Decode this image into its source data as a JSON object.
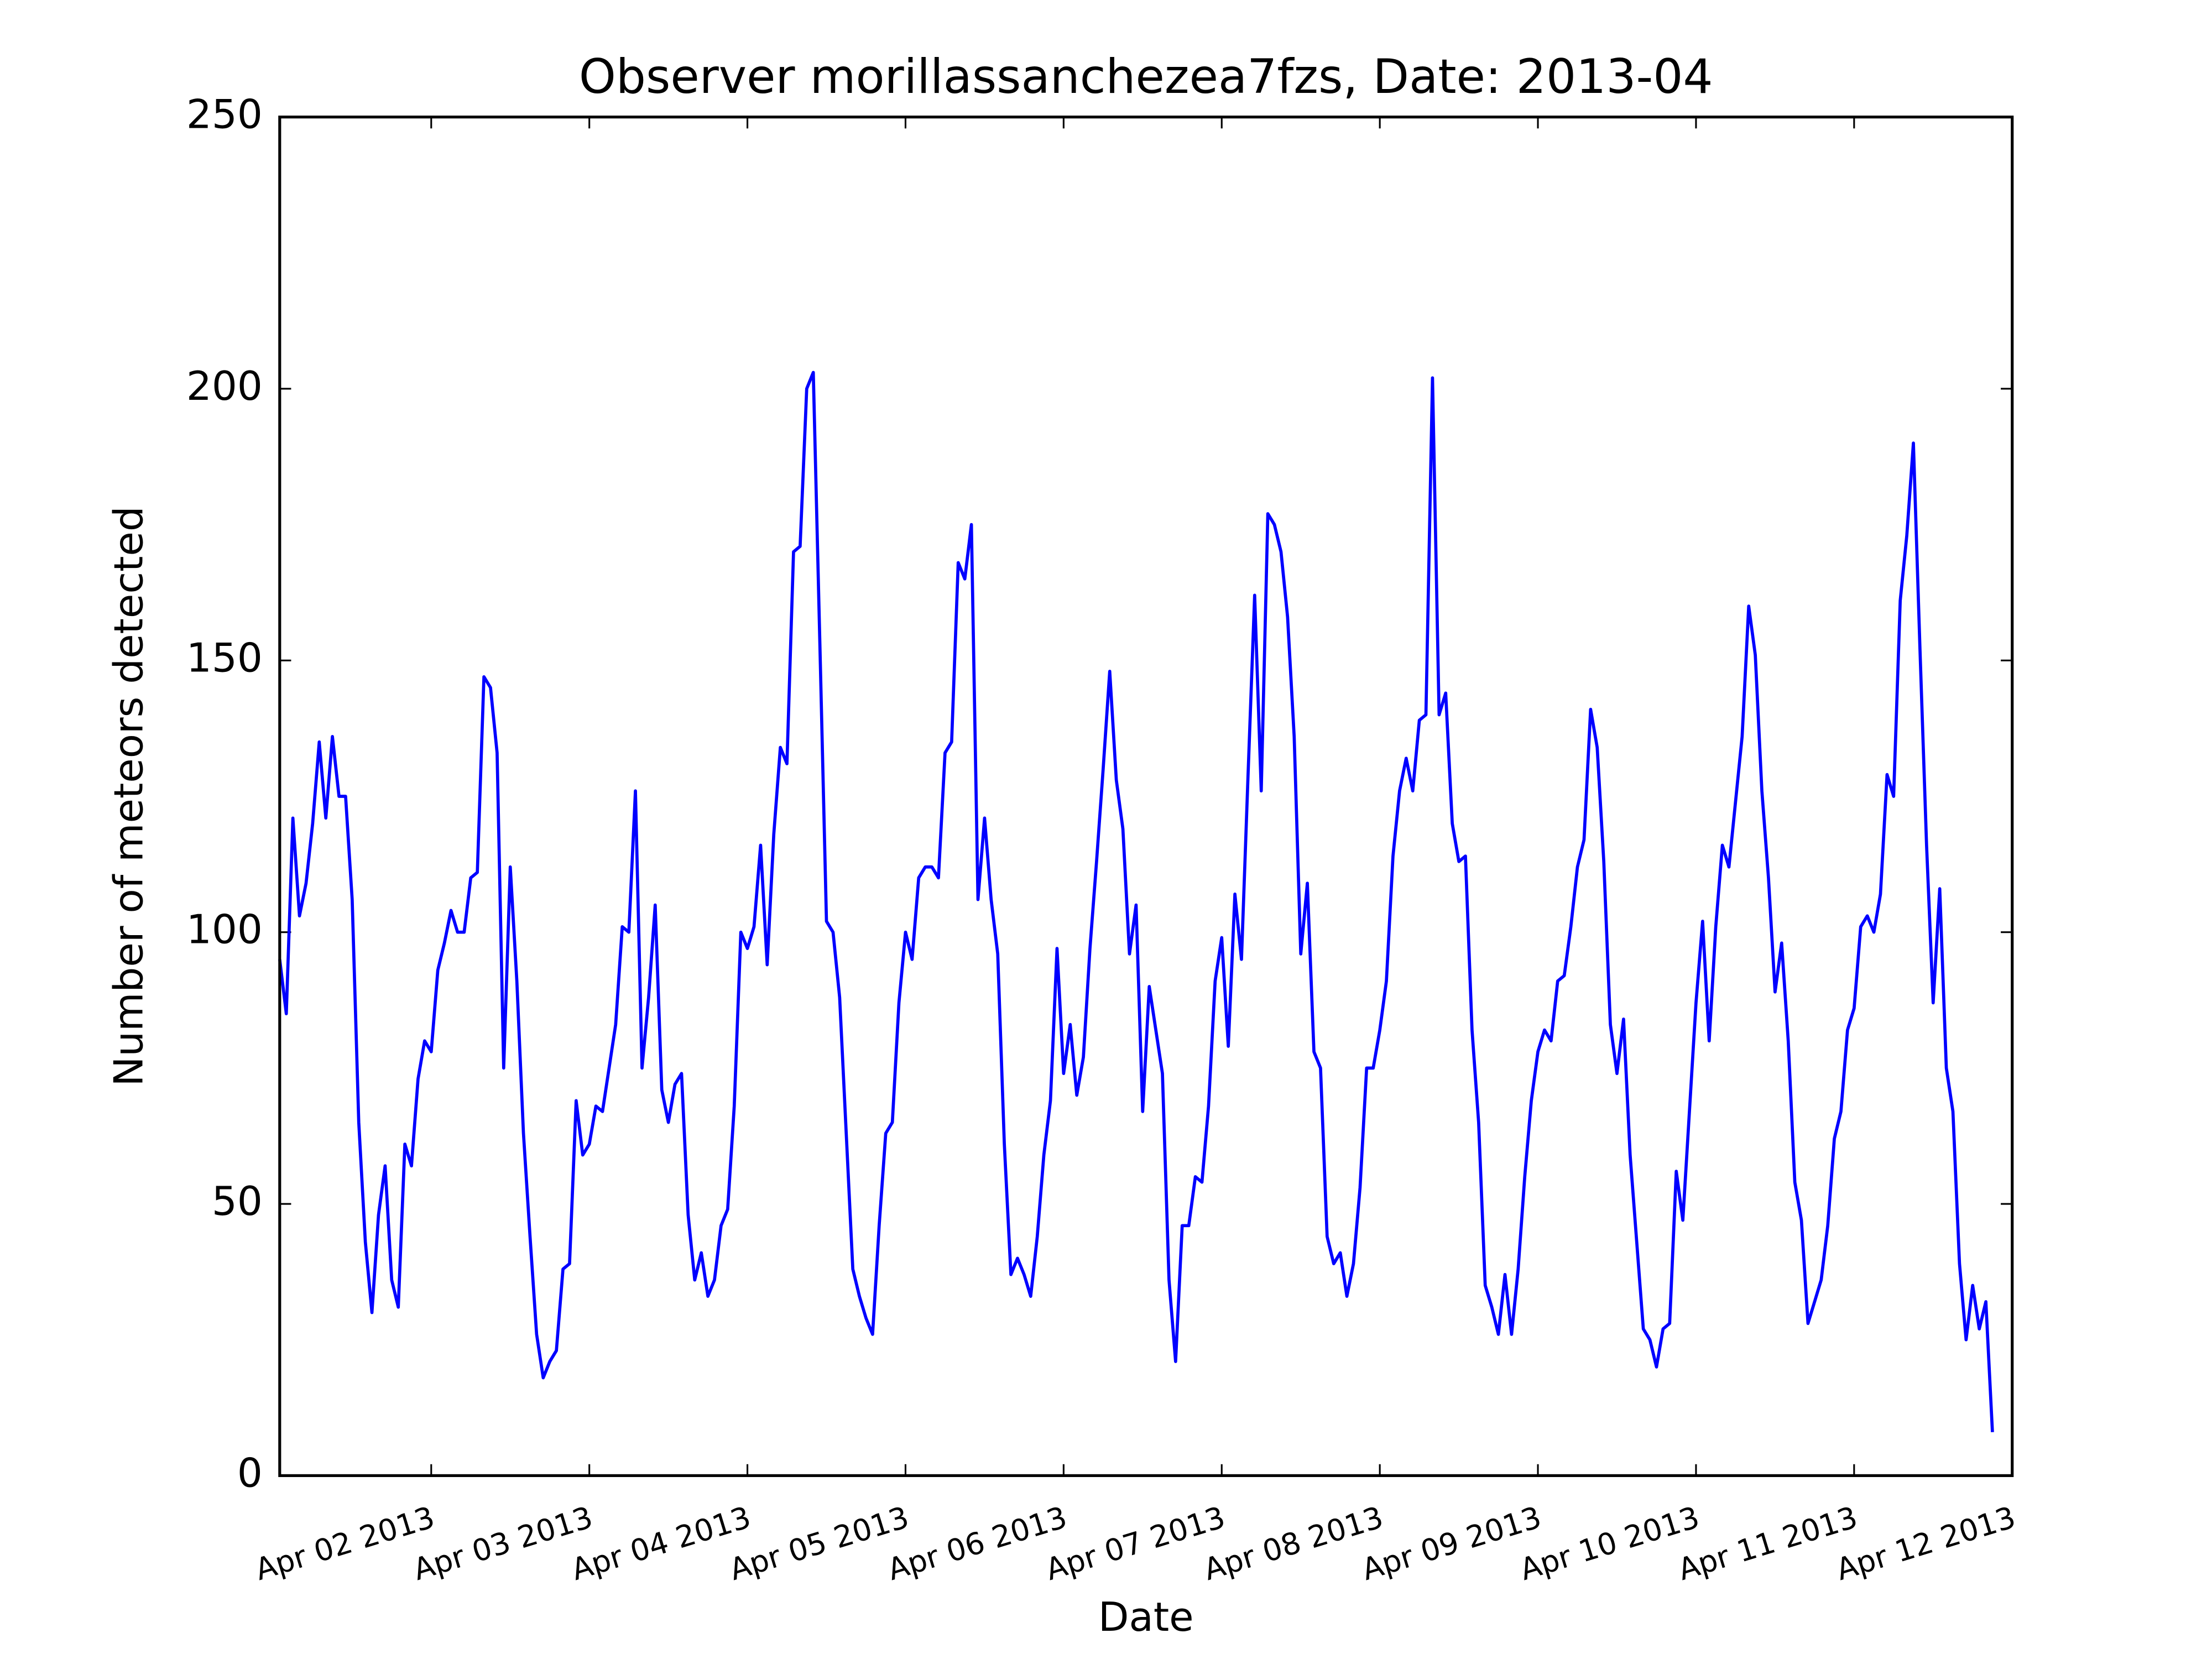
{
  "chart_data": {
    "type": "line",
    "title": "Observer morillassanchezea7fzs, Date: 2013-04",
    "x_label": "Date",
    "y_label": "Number of meteors detected",
    "color": "#0000ff",
    "x": [
      "2013-04-01T01:00",
      "2013-04-01T02:00",
      "2013-04-01T03:00",
      "2013-04-01T04:00",
      "2013-04-01T05:00",
      "2013-04-01T06:00",
      "2013-04-01T07:00",
      "2013-04-01T08:00",
      "2013-04-01T09:00",
      "2013-04-01T10:00",
      "2013-04-01T11:00",
      "2013-04-01T12:00",
      "2013-04-01T13:00",
      "2013-04-01T14:00",
      "2013-04-01T15:00",
      "2013-04-01T16:00",
      "2013-04-01T17:00",
      "2013-04-01T18:00",
      "2013-04-01T19:00",
      "2013-04-01T20:00",
      "2013-04-01T21:00",
      "2013-04-01T22:00",
      "2013-04-01T23:00",
      "2013-04-02T00:00",
      "2013-04-02T01:00",
      "2013-04-02T02:00",
      "2013-04-02T03:00",
      "2013-04-02T04:00",
      "2013-04-02T05:00",
      "2013-04-02T06:00",
      "2013-04-02T07:00",
      "2013-04-02T08:00",
      "2013-04-02T09:00",
      "2013-04-02T10:00",
      "2013-04-02T11:00",
      "2013-04-02T12:00",
      "2013-04-02T13:00",
      "2013-04-02T14:00",
      "2013-04-02T15:00",
      "2013-04-02T16:00",
      "2013-04-02T17:00",
      "2013-04-02T18:00",
      "2013-04-02T19:00",
      "2013-04-02T20:00",
      "2013-04-02T21:00",
      "2013-04-02T22:00",
      "2013-04-02T23:00",
      "2013-04-03T00:00",
      "2013-04-03T01:00",
      "2013-04-03T02:00",
      "2013-04-03T03:00",
      "2013-04-03T04:00",
      "2013-04-03T05:00",
      "2013-04-03T06:00",
      "2013-04-03T07:00",
      "2013-04-03T08:00",
      "2013-04-03T09:00",
      "2013-04-03T10:00",
      "2013-04-03T11:00",
      "2013-04-03T12:00",
      "2013-04-03T13:00",
      "2013-04-03T14:00",
      "2013-04-03T15:00",
      "2013-04-03T16:00",
      "2013-04-03T17:00",
      "2013-04-03T18:00",
      "2013-04-03T19:00",
      "2013-04-03T20:00",
      "2013-04-03T21:00",
      "2013-04-03T22:00",
      "2013-04-03T23:00",
      "2013-04-04T00:00",
      "2013-04-04T01:00",
      "2013-04-04T02:00",
      "2013-04-04T03:00",
      "2013-04-04T04:00",
      "2013-04-04T05:00",
      "2013-04-04T06:00",
      "2013-04-04T07:00",
      "2013-04-04T08:00",
      "2013-04-04T09:00",
      "2013-04-04T10:00",
      "2013-04-04T11:00",
      "2013-04-04T12:00",
      "2013-04-04T13:00",
      "2013-04-04T14:00",
      "2013-04-04T15:00",
      "2013-04-04T16:00",
      "2013-04-04T17:00",
      "2013-04-04T18:00",
      "2013-04-04T19:00",
      "2013-04-04T20:00",
      "2013-04-04T21:00",
      "2013-04-04T22:00",
      "2013-04-04T23:00",
      "2013-04-05T00:00",
      "2013-04-05T01:00",
      "2013-04-05T02:00",
      "2013-04-05T03:00",
      "2013-04-05T04:00",
      "2013-04-05T05:00",
      "2013-04-05T06:00",
      "2013-04-05T07:00",
      "2013-04-05T08:00",
      "2013-04-05T09:00",
      "2013-04-05T10:00",
      "2013-04-05T11:00",
      "2013-04-05T12:00",
      "2013-04-05T13:00",
      "2013-04-05T14:00",
      "2013-04-05T15:00",
      "2013-04-05T16:00",
      "2013-04-05T17:00",
      "2013-04-05T18:00",
      "2013-04-05T19:00",
      "2013-04-05T20:00",
      "2013-04-05T21:00",
      "2013-04-05T22:00",
      "2013-04-05T23:00",
      "2013-04-06T00:00",
      "2013-04-06T01:00",
      "2013-04-06T02:00",
      "2013-04-06T03:00",
      "2013-04-06T04:00",
      "2013-04-06T05:00",
      "2013-04-06T06:00",
      "2013-04-06T07:00",
      "2013-04-06T08:00",
      "2013-04-06T09:00",
      "2013-04-06T10:00",
      "2013-04-06T11:00",
      "2013-04-06T12:00",
      "2013-04-06T13:00",
      "2013-04-06T14:00",
      "2013-04-06T15:00",
      "2013-04-06T16:00",
      "2013-04-06T17:00",
      "2013-04-06T18:00",
      "2013-04-06T19:00",
      "2013-04-06T20:00",
      "2013-04-06T21:00",
      "2013-04-06T22:00",
      "2013-04-06T23:00",
      "2013-04-07T00:00",
      "2013-04-07T01:00",
      "2013-04-07T02:00",
      "2013-04-07T03:00",
      "2013-04-07T04:00",
      "2013-04-07T05:00",
      "2013-04-07T06:00",
      "2013-04-07T07:00",
      "2013-04-07T08:00",
      "2013-04-07T09:00",
      "2013-04-07T10:00",
      "2013-04-07T11:00",
      "2013-04-07T12:00",
      "2013-04-07T13:00",
      "2013-04-07T14:00",
      "2013-04-07T15:00",
      "2013-04-07T16:00",
      "2013-04-07T17:00",
      "2013-04-07T18:00",
      "2013-04-07T19:00",
      "2013-04-07T20:00",
      "2013-04-07T21:00",
      "2013-04-07T22:00",
      "2013-04-07T23:00",
      "2013-04-08T00:00",
      "2013-04-08T01:00",
      "2013-04-08T02:00",
      "2013-04-08T03:00",
      "2013-04-08T04:00",
      "2013-04-08T05:00",
      "2013-04-08T06:00",
      "2013-04-08T07:00",
      "2013-04-08T08:00",
      "2013-04-08T09:00",
      "2013-04-08T10:00",
      "2013-04-08T11:00",
      "2013-04-08T12:00",
      "2013-04-08T13:00",
      "2013-04-08T14:00",
      "2013-04-08T15:00",
      "2013-04-08T16:00",
      "2013-04-08T17:00",
      "2013-04-08T18:00",
      "2013-04-08T19:00",
      "2013-04-08T20:00",
      "2013-04-08T21:00",
      "2013-04-08T22:00",
      "2013-04-08T23:00",
      "2013-04-09T00:00",
      "2013-04-09T01:00",
      "2013-04-09T02:00",
      "2013-04-09T03:00",
      "2013-04-09T04:00",
      "2013-04-09T05:00",
      "2013-04-09T06:00",
      "2013-04-09T07:00",
      "2013-04-09T08:00",
      "2013-04-09T09:00",
      "2013-04-09T10:00",
      "2013-04-09T11:00",
      "2013-04-09T12:00",
      "2013-04-09T13:00",
      "2013-04-09T14:00",
      "2013-04-09T15:00",
      "2013-04-09T16:00",
      "2013-04-09T17:00",
      "2013-04-09T18:00",
      "2013-04-09T19:00",
      "2013-04-09T20:00",
      "2013-04-09T21:00",
      "2013-04-09T22:00",
      "2013-04-09T23:00",
      "2013-04-10T00:00",
      "2013-04-10T01:00",
      "2013-04-10T02:00",
      "2013-04-10T03:00",
      "2013-04-10T04:00",
      "2013-04-10T05:00",
      "2013-04-10T06:00",
      "2013-04-10T07:00",
      "2013-04-10T08:00",
      "2013-04-10T09:00",
      "2013-04-10T10:00",
      "2013-04-10T11:00",
      "2013-04-10T12:00",
      "2013-04-10T13:00",
      "2013-04-10T14:00",
      "2013-04-10T15:00",
      "2013-04-10T16:00",
      "2013-04-10T17:00",
      "2013-04-10T18:00",
      "2013-04-10T19:00",
      "2013-04-10T20:00",
      "2013-04-10T21:00",
      "2013-04-10T22:00",
      "2013-04-10T23:00",
      "2013-04-11T00:00",
      "2013-04-11T01:00",
      "2013-04-11T02:00",
      "2013-04-11T03:00",
      "2013-04-11T04:00",
      "2013-04-11T05:00",
      "2013-04-11T06:00",
      "2013-04-11T07:00",
      "2013-04-11T08:00",
      "2013-04-11T09:00",
      "2013-04-11T10:00",
      "2013-04-11T11:00",
      "2013-04-11T12:00",
      "2013-04-11T13:00",
      "2013-04-11T14:00",
      "2013-04-11T15:00",
      "2013-04-11T16:00",
      "2013-04-11T17:00",
      "2013-04-11T18:00",
      "2013-04-11T19:00",
      "2013-04-11T20:00",
      "2013-04-11T21:00"
    ],
    "values": [
      95,
      85,
      121,
      103,
      109,
      120,
      135,
      121,
      136,
      125,
      125,
      106,
      65,
      43,
      30,
      48,
      57,
      36,
      31,
      61,
      57,
      73,
      80,
      78,
      93,
      98,
      104,
      100,
      100,
      110,
      111,
      147,
      145,
      133,
      75,
      112,
      91,
      63,
      44,
      26,
      18,
      21,
      23,
      38,
      39,
      69,
      59,
      61,
      68,
      67,
      75,
      83,
      101,
      100,
      126,
      75,
      88,
      105,
      71,
      65,
      72,
      74,
      48,
      36,
      41,
      33,
      36,
      46,
      49,
      68,
      100,
      97,
      101,
      116,
      94,
      118,
      134,
      131,
      170,
      171,
      200,
      203,
      153,
      102,
      100,
      88,
      63,
      38,
      33,
      29,
      26,
      46,
      63,
      65,
      87,
      100,
      95,
      110,
      112,
      112,
      110,
      133,
      135,
      168,
      165,
      175,
      106,
      121,
      106,
      96,
      61,
      37,
      40,
      37,
      33,
      44,
      59,
      69,
      97,
      74,
      83,
      70,
      77,
      97,
      113,
      130,
      148,
      128,
      119,
      96,
      105,
      67,
      90,
      82,
      74,
      36,
      21,
      46,
      46,
      55,
      54,
      68,
      91,
      99,
      79,
      107,
      95,
      129,
      162,
      126,
      177,
      175,
      170,
      158,
      136,
      96,
      109,
      78,
      75,
      44,
      39,
      41,
      33,
      39,
      53,
      75,
      75,
      82,
      91,
      114,
      126,
      132,
      126,
      139,
      140,
      202,
      140,
      144,
      120,
      113,
      114,
      82,
      65,
      35,
      31,
      26,
      37,
      26,
      38,
      55,
      69,
      78,
      82,
      80,
      91,
      92,
      101,
      112,
      117,
      141,
      134,
      113,
      83,
      74,
      84,
      59,
      43,
      27,
      25,
      20,
      27,
      28,
      56,
      47,
      67,
      87,
      102,
      80,
      101,
      116,
      112,
      124,
      136,
      160,
      151,
      126,
      110,
      89,
      98,
      80,
      54,
      47,
      28,
      32,
      36,
      46,
      62,
      67,
      82,
      86,
      101,
      103,
      100,
      107,
      129,
      125,
      161,
      173,
      190,
      152,
      116,
      87,
      108,
      75,
      67,
      39,
      25,
      35,
      27,
      32,
      8
    ],
    "xlim": [
      "2013-04-01T01:00",
      "2013-04-12T00:00"
    ],
    "xticks": [
      {
        "value": "2013-04-02",
        "label": "Apr 02 2013"
      },
      {
        "value": "2013-04-03",
        "label": "Apr 03 2013"
      },
      {
        "value": "2013-04-04",
        "label": "Apr 04 2013"
      },
      {
        "value": "2013-04-05",
        "label": "Apr 05 2013"
      },
      {
        "value": "2013-04-06",
        "label": "Apr 06 2013"
      },
      {
        "value": "2013-04-07",
        "label": "Apr 07 2013"
      },
      {
        "value": "2013-04-08",
        "label": "Apr 08 2013"
      },
      {
        "value": "2013-04-09",
        "label": "Apr 09 2013"
      },
      {
        "value": "2013-04-10",
        "label": "Apr 10 2013"
      },
      {
        "value": "2013-04-11",
        "label": "Apr 11 2013"
      },
      {
        "value": "2013-04-12",
        "label": "Apr 12 2013"
      }
    ],
    "ylim": [
      0,
      250
    ],
    "yticks": [
      0,
      50,
      100,
      150,
      200,
      250
    ],
    "grid": false
  }
}
